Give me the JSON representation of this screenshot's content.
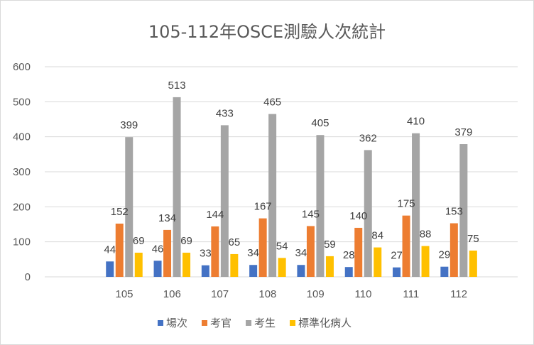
{
  "chart_data": {
    "type": "bar",
    "title": "105-112年OSCE測驗人次統計",
    "categories": [
      "105",
      "106",
      "107",
      "108",
      "109",
      "110",
      "111",
      "112"
    ],
    "series": [
      {
        "name": "場次",
        "color": "#4472c4",
        "values": [
          44,
          46,
          33,
          34,
          34,
          28,
          27,
          29
        ]
      },
      {
        "name": "考官",
        "color": "#ed7d31",
        "values": [
          152,
          134,
          144,
          167,
          145,
          140,
          175,
          153
        ]
      },
      {
        "name": "考生",
        "color": "#a5a5a5",
        "values": [
          399,
          513,
          433,
          465,
          405,
          362,
          410,
          379
        ]
      },
      {
        "name": "標準化病人",
        "color": "#ffc000",
        "values": [
          69,
          69,
          65,
          54,
          59,
          84,
          88,
          75
        ]
      }
    ],
    "ylim": [
      0,
      600
    ],
    "yticks": [
      0,
      100,
      200,
      300,
      400,
      500,
      600
    ],
    "grid": true,
    "legend_position": "bottom",
    "data_labels": true
  }
}
